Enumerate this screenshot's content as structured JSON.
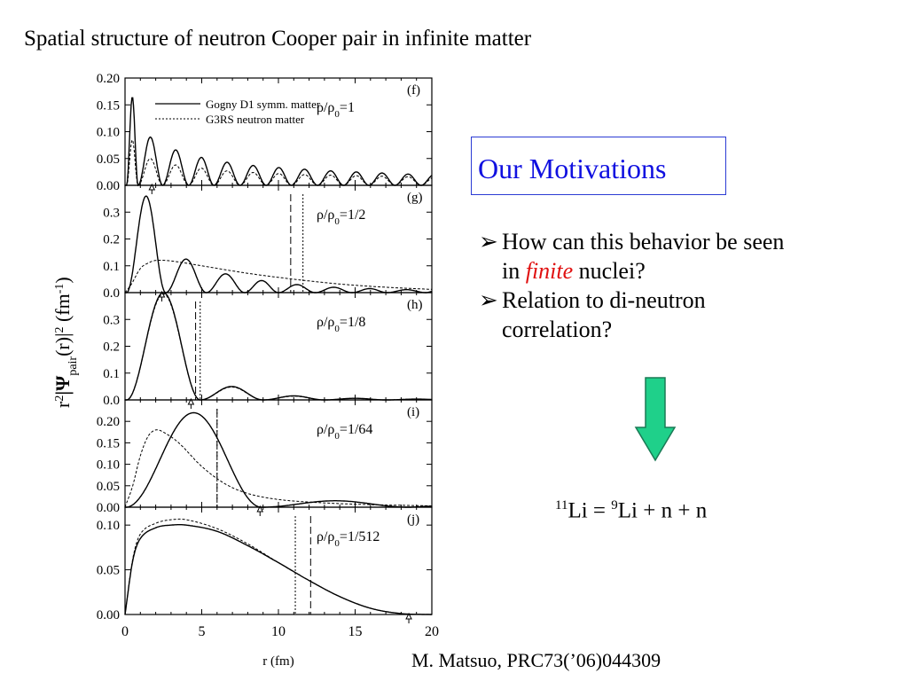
{
  "slide": {
    "title": "Spatial structure of neutron Cooper pair in infinite matter",
    "citation": "M. Matsuo, PRC73(’06)044309"
  },
  "motivation": {
    "title": "Our Motivations",
    "bullet1_line1": "How can this behavior be seen",
    "bullet1_line2_pre": "in ",
    "bullet1_line2_em": "finite",
    "bullet1_line2_post": " nuclei?",
    "bullet2_line1": "Relation to di-neutron",
    "bullet2_line2": "correlation?",
    "arrow_color": "#1fd08a",
    "equation": {
      "a_mass": "11",
      "a_sym": "Li",
      "eq": " = ",
      "b_mass": "9",
      "b_sym": "Li",
      "rest": " + n + n"
    }
  },
  "chart_data": {
    "type": "line",
    "xlabel": "r (fm)",
    "ylabel": "r²|Ψpair(r)|²   (fm⁻¹)",
    "xlim": [
      0,
      20
    ],
    "xticks": [
      "0",
      "5",
      "10",
      "15",
      "20"
    ],
    "legend": [
      "Gogny D1 symm. matter",
      "G3RS neutron matter"
    ],
    "panels": [
      {
        "tag": "(f)",
        "density": "ρ/ρ0=1",
        "ylim": [
          0,
          0.2
        ],
        "yticks": [
          0,
          0.05,
          0.1,
          0.15,
          0.2
        ],
        "tick_labels": [
          "0.00",
          "0.05",
          "0.10",
          "0.15",
          "0.20"
        ],
        "gogny": {
          "kind": "osc",
          "nodes": [
            0.1,
            0.85,
            2.45,
            4.15,
            5.8,
            7.5,
            9.2,
            10.85,
            12.55,
            14.25,
            15.9,
            17.6,
            19.3,
            21.0
          ],
          "peaks": [
            0.165,
            0.09,
            0.066,
            0.052,
            0.043,
            0.037,
            0.033,
            0.03,
            0.027,
            0.025,
            0.023,
            0.021,
            0.02
          ]
        },
        "g3rs": {
          "kind": "osc",
          "nodes": [
            0.1,
            0.85,
            2.45,
            4.15,
            5.8,
            7.5,
            9.2,
            10.85,
            12.55,
            14.25,
            15.9,
            17.6,
            19.3,
            21.0
          ],
          "peaks": [
            0.085,
            0.05,
            0.038,
            0.032,
            0.027,
            0.024,
            0.022,
            0.02,
            0.019,
            0.018,
            0.017,
            0.016,
            0.015
          ]
        },
        "arrow_r": 1.75,
        "dashed_r": null,
        "dotted_r": null
      },
      {
        "tag": "(g)",
        "density": "ρ/ρ0=1/2",
        "ylim": [
          0,
          0.4
        ],
        "yticks": [
          0,
          0.1,
          0.2,
          0.3
        ],
        "tick_labels": [
          "0.0",
          "0.1",
          "0.2",
          "0.3"
        ],
        "gogny": {
          "kind": "osc",
          "nodes": [
            0.1,
            2.65,
            5.3,
            7.8,
            10.0,
            12.4,
            14.8,
            17.1,
            19.6,
            21.0
          ],
          "peaks": [
            0.36,
            0.125,
            0.07,
            0.045,
            0.03,
            0.02,
            0.015,
            0.011,
            0.008
          ]
        },
        "g3rs": {
          "kind": "smooth",
          "pts": [
            [
              0,
              0
            ],
            [
              0.4,
              0.03
            ],
            [
              1,
              0.09
            ],
            [
              1.5,
              0.11
            ],
            [
              2,
              0.12
            ],
            [
              3,
              0.118
            ],
            [
              5,
              0.1
            ],
            [
              8,
              0.072
            ],
            [
              11,
              0.05
            ],
            [
              14,
              0.032
            ],
            [
              17,
              0.02
            ],
            [
              20,
              0.012
            ]
          ]
        },
        "arrow_r": 2.4,
        "dashed_r": 10.8,
        "dotted_r": 11.6
      },
      {
        "tag": "(h)",
        "density": "ρ/ρ0=1/8",
        "ylim": [
          0,
          0.4
        ],
        "yticks": [
          0,
          0.1,
          0.2,
          0.3
        ],
        "tick_labels": [
          "0.0",
          "0.1",
          "0.2",
          "0.3"
        ],
        "gogny": {
          "kind": "osc",
          "nodes": [
            0.1,
            4.9,
            9.0,
            13.0,
            17.0,
            21.0
          ],
          "peaks": [
            0.4,
            0.05,
            0.015,
            0.006,
            0.003
          ]
        },
        "g3rs": {
          "kind": "osc",
          "nodes": [
            0.1,
            4.9,
            9.0,
            13.0,
            17.0,
            21.0
          ],
          "peaks": [
            0.395,
            0.048,
            0.014,
            0.006,
            0.003
          ]
        },
        "arrow_r": 4.3,
        "dashed_r": 4.6,
        "dotted_r": 4.9
      },
      {
        "tag": "(i)",
        "density": "ρ/ρ0=1/64",
        "ylim": [
          0,
          0.25
        ],
        "yticks": [
          0,
          0.05,
          0.1,
          0.15,
          0.2
        ],
        "tick_labels": [
          "0.00",
          "0.05",
          "0.10",
          "0.15",
          "0.20"
        ],
        "gogny": {
          "kind": "osc",
          "nodes": [
            0.05,
            8.9,
            18.5,
            21.0
          ],
          "peaks": [
            0.22,
            0.015,
            0.002
          ]
        },
        "g3rs": {
          "kind": "smooth",
          "pts": [
            [
              0,
              0
            ],
            [
              0.5,
              0.05
            ],
            [
              1,
              0.12
            ],
            [
              1.5,
              0.165
            ],
            [
              2,
              0.18
            ],
            [
              2.5,
              0.175
            ],
            [
              3.5,
              0.15
            ],
            [
              5,
              0.095
            ],
            [
              6.5,
              0.055
            ],
            [
              8,
              0.032
            ],
            [
              10,
              0.018
            ],
            [
              13,
              0.01
            ],
            [
              16,
              0.006
            ],
            [
              20,
              0.003
            ]
          ]
        },
        "arrow_r": 8.8,
        "dashed_r": 6.0,
        "dotted_r": 6.0
      },
      {
        "tag": "(j)",
        "density": "ρ/ρ0=1/512",
        "ylim": [
          0,
          0.12
        ],
        "yticks": [
          0,
          0.05,
          0.1
        ],
        "tick_labels": [
          "0.00",
          "0.05",
          "0.10"
        ],
        "gogny": {
          "kind": "smooth",
          "pts": [
            [
              0,
              0
            ],
            [
              0.5,
              0.06
            ],
            [
              1,
              0.085
            ],
            [
              2,
              0.097
            ],
            [
              3,
              0.1
            ],
            [
              4,
              0.1
            ],
            [
              6,
              0.093
            ],
            [
              8,
              0.077
            ],
            [
              10,
              0.058
            ],
            [
              12,
              0.038
            ],
            [
              14,
              0.02
            ],
            [
              16,
              0.007
            ],
            [
              18,
              0.001
            ],
            [
              20,
              0.0
            ]
          ]
        },
        "g3rs": {
          "kind": "smooth",
          "pts": [
            [
              0,
              0
            ],
            [
              0.5,
              0.062
            ],
            [
              1,
              0.09
            ],
            [
              2,
              0.102
            ],
            [
              3,
              0.106
            ],
            [
              4,
              0.106
            ],
            [
              6,
              0.096
            ],
            [
              8,
              0.079
            ],
            [
              10,
              0.058
            ],
            [
              12,
              0.038
            ],
            [
              14,
              0.02
            ],
            [
              16,
              0.007
            ],
            [
              18,
              0.001
            ],
            [
              20,
              0.0
            ]
          ]
        },
        "arrow_r": 18.5,
        "dashed_r": 12.1,
        "dotted_r": 11.1
      }
    ]
  }
}
